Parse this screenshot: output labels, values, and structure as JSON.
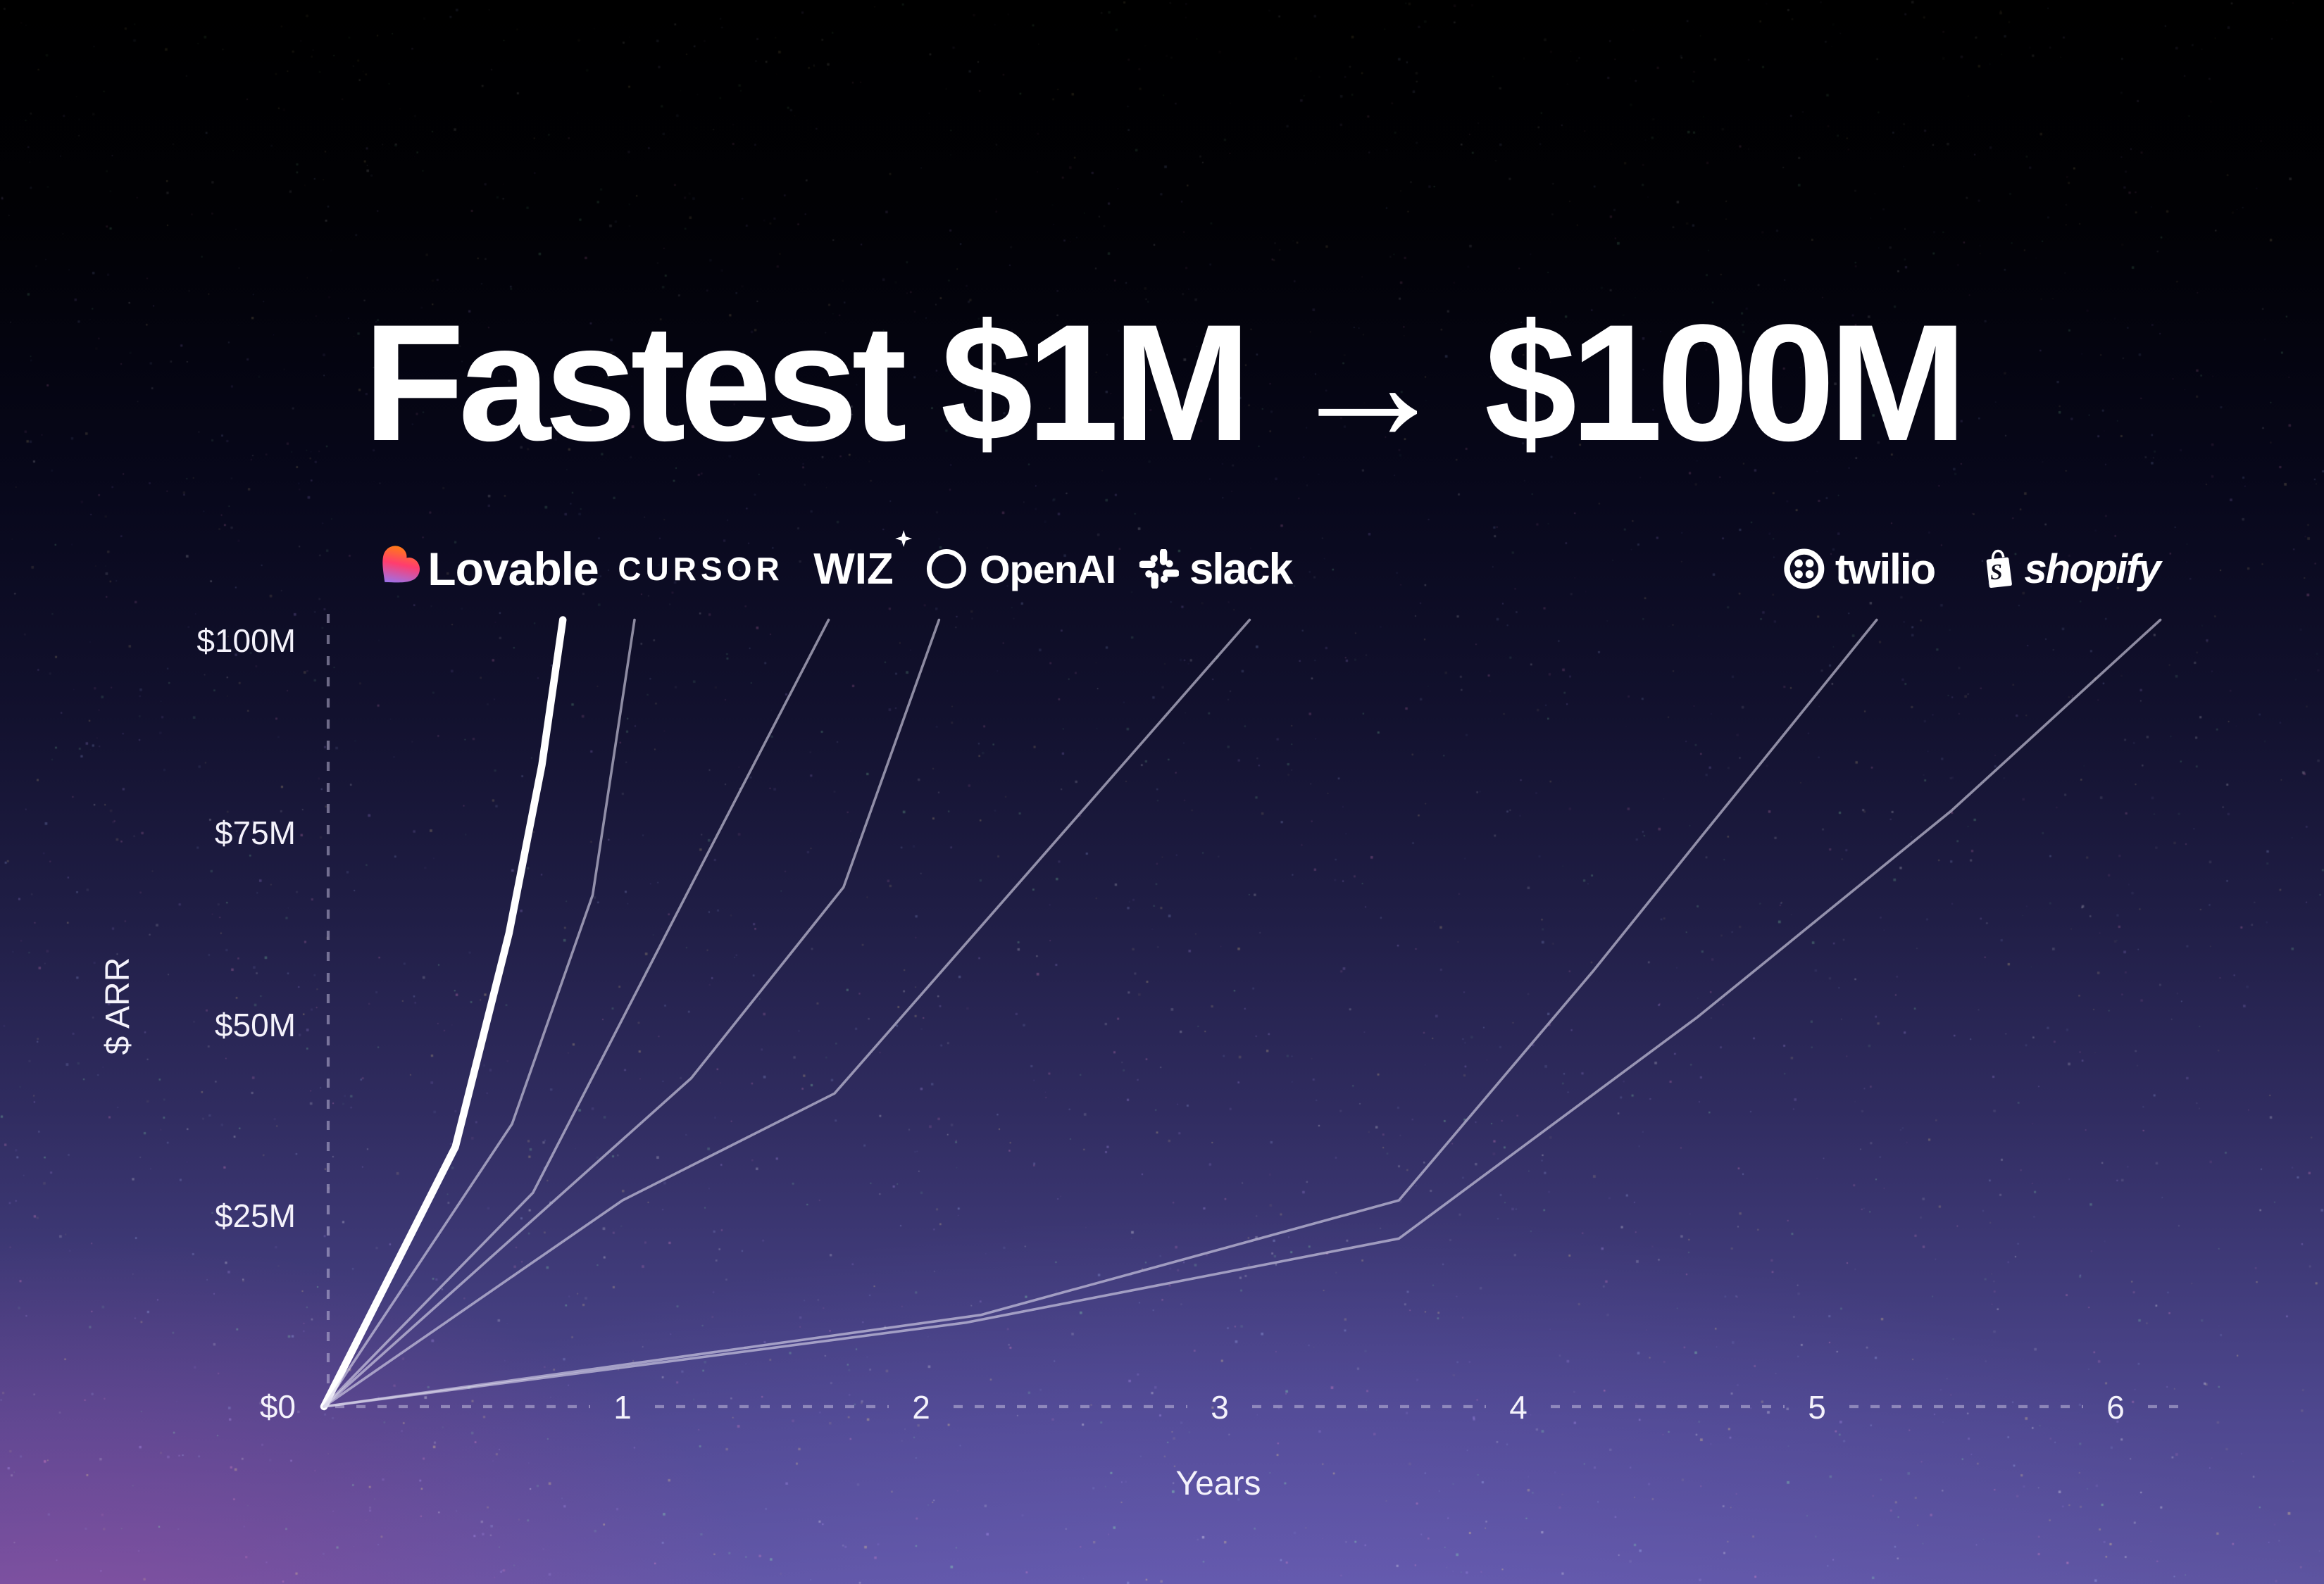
{
  "title": "Fastest $1M → $100M",
  "axes": {
    "y_axis_label": "$ ARR",
    "x_axis_label": "Years",
    "y_ticks": [
      "$100M",
      "$75M",
      "$50M",
      "$25M",
      "$0"
    ],
    "x_ticks": [
      "1",
      "2",
      "3",
      "4",
      "5",
      "6"
    ]
  },
  "logos": [
    {
      "label": "Lovable"
    },
    {
      "label": "CURSOR"
    },
    {
      "label": "WIZ"
    },
    {
      "label": "OpenAI"
    },
    {
      "label": "slack"
    },
    {
      "label": "twilio"
    },
    {
      "label": "shopify"
    }
  ],
  "colors": {
    "emphasis_line": "#ffffff",
    "thin_line": "#dcd9ec",
    "axis_dash": "#c9c4e2",
    "heart_gradient": [
      "#ff8a00",
      "#ff3d6e",
      "#8a7bff"
    ]
  },
  "chart_data": {
    "type": "line",
    "title": "Fastest $1M → $100M",
    "xlabel": "Years",
    "ylabel": "$ ARR",
    "units": "millions USD ARR",
    "xlim": [
      0,
      6.7
    ],
    "ylim": [
      0,
      100
    ],
    "x_ticks": [
      1,
      2,
      3,
      4,
      5,
      6
    ],
    "y_ticks": [
      0,
      25,
      50,
      75,
      100
    ],
    "grid": false,
    "legend": "logos above each curve top",
    "series": [
      {
        "name": "Lovable",
        "emphasis": true,
        "years_to_100m": 0.8,
        "points": [
          [
            0,
            0
          ],
          [
            0.44,
            34
          ],
          [
            0.62,
            62
          ],
          [
            0.73,
            84
          ],
          [
            0.8,
            103
          ]
        ]
      },
      {
        "name": "Cursor",
        "emphasis": false,
        "years_to_100m": 1.04,
        "points": [
          [
            0,
            0
          ],
          [
            0.63,
            37
          ],
          [
            0.9,
            67
          ],
          [
            1.04,
            103
          ]
        ]
      },
      {
        "name": "Wiz",
        "emphasis": false,
        "years_to_100m": 1.69,
        "points": [
          [
            0,
            0
          ],
          [
            0.7,
            28
          ],
          [
            1.24,
            69
          ],
          [
            1.69,
            103
          ]
        ]
      },
      {
        "name": "OpenAI",
        "emphasis": false,
        "years_to_100m": 2.06,
        "points": [
          [
            0,
            0
          ],
          [
            1.23,
            43
          ],
          [
            1.74,
            68
          ],
          [
            2.06,
            103
          ]
        ]
      },
      {
        "name": "Slack",
        "emphasis": false,
        "years_to_100m": 3.1,
        "points": [
          [
            0,
            0
          ],
          [
            1.0,
            27
          ],
          [
            1.71,
            41
          ],
          [
            3.1,
            103
          ]
        ]
      },
      {
        "name": "Twilio",
        "emphasis": false,
        "years_to_100m": 5.2,
        "points": [
          [
            0,
            0
          ],
          [
            2.2,
            12
          ],
          [
            3.6,
            27
          ],
          [
            4.25,
            57
          ],
          [
            4.6,
            74
          ],
          [
            5.2,
            103
          ]
        ]
      },
      {
        "name": "Shopify",
        "emphasis": false,
        "years_to_100m": 6.15,
        "points": [
          [
            0,
            0
          ],
          [
            2.15,
            11
          ],
          [
            3.6,
            22
          ],
          [
            4.6,
            51
          ],
          [
            5.45,
            78
          ],
          [
            6.15,
            103
          ]
        ]
      }
    ]
  }
}
